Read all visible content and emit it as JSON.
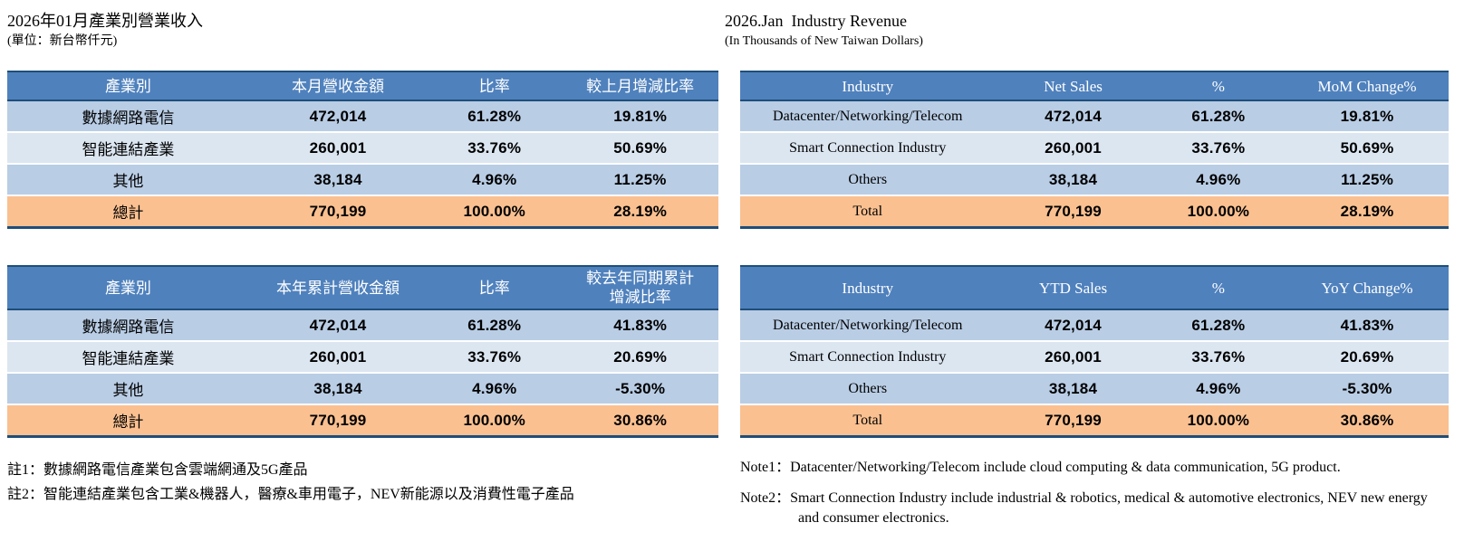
{
  "colors": {
    "header_blue": "#4F81BD",
    "row_light_blue": "#B9CDE5",
    "row_lighter_blue": "#DCE6F1",
    "total_orange": "#FAC090",
    "border_navy": "#1F4E79",
    "header_text": "#FFFFFF"
  },
  "left": {
    "title": "2026年01月產業別營業收入",
    "subtitle": "(單位：新台幣仟元)",
    "monthly": {
      "headers": [
        "產業別",
        "本月營收金額",
        "比率",
        "較上月增減比率"
      ],
      "rows": [
        [
          "數據網路電信",
          "472,014",
          "61.28%",
          "19.81%"
        ],
        [
          "智能連結產業",
          "260,001",
          "33.76%",
          "50.69%"
        ],
        [
          "其他",
          "38,184",
          "4.96%",
          "11.25%"
        ]
      ],
      "total": [
        "總計",
        "770,199",
        "100.00%",
        "28.19%"
      ]
    },
    "ytd": {
      "headers": [
        "產業別",
        "本年累計營收金額",
        "比率",
        "較去年同期累計\n增減比率"
      ],
      "rows": [
        [
          "數據網路電信",
          "472,014",
          "61.28%",
          "41.83%"
        ],
        [
          "智能連結產業",
          "260,001",
          "33.76%",
          "20.69%"
        ],
        [
          "其他",
          "38,184",
          "4.96%",
          "-5.30%"
        ]
      ],
      "total": [
        "總計",
        "770,199",
        "100.00%",
        "30.86%"
      ]
    },
    "notes": [
      "註1：數據網路電信產業包含雲端網通及5G產品",
      "註2：智能連結產業包含工業&機器人，醫療&車用電子，NEV新能源以及消費性電子產品"
    ]
  },
  "right": {
    "title": "2026.Jan  Industry Revenue",
    "subtitle": "(In Thousands of New Taiwan Dollars)",
    "monthly": {
      "headers": [
        "Industry",
        "Net Sales",
        "%",
        "MoM Change%"
      ],
      "rows": [
        [
          "Datacenter/Networking/Telecom",
          "472,014",
          "61.28%",
          "19.81%"
        ],
        [
          "Smart Connection Industry",
          "260,001",
          "33.76%",
          "50.69%"
        ],
        [
          "Others",
          "38,184",
          "4.96%",
          "11.25%"
        ]
      ],
      "total": [
        "Total",
        "770,199",
        "100.00%",
        "28.19%"
      ]
    },
    "ytd": {
      "headers": [
        "Industry",
        "YTD Sales",
        "%",
        "YoY Change%"
      ],
      "rows": [
        [
          "Datacenter/Networking/Telecom",
          "472,014",
          "61.28%",
          "41.83%"
        ],
        [
          "Smart Connection Industry",
          "260,001",
          "33.76%",
          "20.69%"
        ],
        [
          "Others",
          "38,184",
          "4.96%",
          "-5.30%"
        ]
      ],
      "total": [
        "Total",
        "770,199",
        "100.00%",
        "30.86%"
      ]
    },
    "notes": [
      "Note1：Datacenter/Networking/Telecom include cloud computing & data communication, 5G product.",
      "Note2：Smart Connection Industry include industrial & robotics, medical & automotive electronics, NEV new energy and consumer electronics."
    ]
  }
}
